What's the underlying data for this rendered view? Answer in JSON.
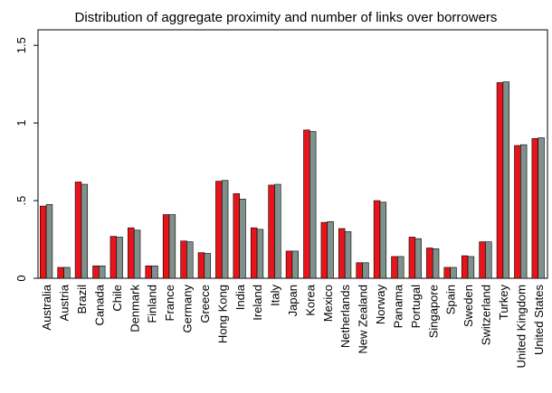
{
  "chart_data": {
    "type": "bar",
    "title": "Distribution of aggregate proximity and number of links over borrowers",
    "xlabel": "",
    "ylabel": "",
    "ylim": [
      0,
      1.6
    ],
    "yticks": [
      0,
      0.5,
      1,
      1.5
    ],
    "ytick_labels": [
      "0",
      ".5",
      "1",
      "1.5"
    ],
    "grid": false,
    "legend": "none",
    "categories": [
      "Australia",
      "Austria",
      "Brazil",
      "Canada",
      "Chile",
      "Denmark",
      "Finland",
      "France",
      "Germany",
      "Greece",
      "Hong Kong",
      "India",
      "Ireland",
      "Italy",
      "Japan",
      "Korea",
      "Mexico",
      "Netherlands",
      "New Zealand",
      "Norway",
      "Panama",
      "Portugal",
      "Singapore",
      "Spain",
      "Sweden",
      "Switzerland",
      "Turkey",
      "United Kingdom",
      "United States"
    ],
    "series": [
      {
        "color": "#e8141b",
        "values": [
          0.465,
          0.07,
          0.62,
          0.08,
          0.27,
          0.325,
          0.08,
          0.41,
          0.24,
          0.165,
          0.625,
          0.545,
          0.325,
          0.6,
          0.175,
          0.955,
          0.36,
          0.32,
          0.1,
          0.5,
          0.14,
          0.265,
          0.195,
          0.07,
          0.145,
          0.235,
          1.26,
          0.855,
          0.9
        ]
      },
      {
        "color": "#7f918d",
        "values": [
          0.475,
          0.07,
          0.605,
          0.08,
          0.265,
          0.31,
          0.08,
          0.41,
          0.235,
          0.16,
          0.63,
          0.51,
          0.315,
          0.605,
          0.175,
          0.945,
          0.365,
          0.3,
          0.1,
          0.49,
          0.14,
          0.255,
          0.19,
          0.07,
          0.14,
          0.235,
          1.265,
          0.86,
          0.905
        ]
      }
    ]
  }
}
